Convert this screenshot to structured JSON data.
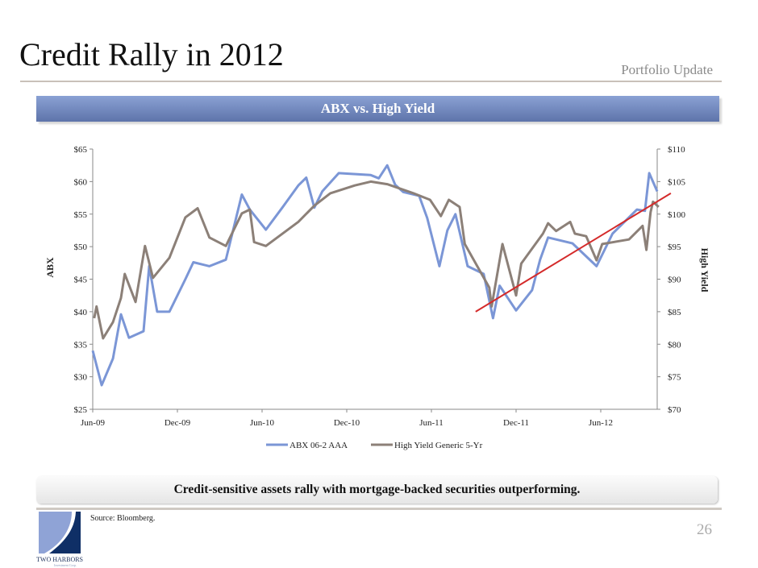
{
  "header": {
    "title": "Credit Rally in 2012",
    "section": "Portfolio Update"
  },
  "banner": {
    "label": "ABX vs. High Yield"
  },
  "callout": {
    "text": "Credit-sensitive assets rally with mortgage-backed securities outperforming."
  },
  "footer": {
    "source": "Source: Bloomberg.",
    "page_number": "26",
    "logo_text": "TWO HARBORS",
    "logo_subtext": "Investment Corp."
  },
  "chart_data": {
    "type": "line",
    "title": "",
    "xlabel": "",
    "ylabel": "ABX",
    "y2label": "High Yield",
    "xlim": [
      "2009-06-01",
      "2012-10-01"
    ],
    "ylim": [
      25,
      65
    ],
    "y2lim": [
      70,
      110
    ],
    "x_ticks": [
      {
        "date": "2009-06-01",
        "label": "Jun-09"
      },
      {
        "date": "2009-12-01",
        "label": "Dec-09"
      },
      {
        "date": "2010-06-01",
        "label": "Jun-10"
      },
      {
        "date": "2010-12-01",
        "label": "Dec-10"
      },
      {
        "date": "2011-06-01",
        "label": "Jun-11"
      },
      {
        "date": "2011-12-01",
        "label": "Dec-11"
      },
      {
        "date": "2012-06-01",
        "label": "Jun-12"
      }
    ],
    "y_ticks": [
      {
        "value": 25,
        "label": "$25"
      },
      {
        "value": 30,
        "label": "$30"
      },
      {
        "value": 35,
        "label": "$35"
      },
      {
        "value": 40,
        "label": "$40"
      },
      {
        "value": 45,
        "label": "$45"
      },
      {
        "value": 50,
        "label": "$50"
      },
      {
        "value": 55,
        "label": "$55"
      },
      {
        "value": 60,
        "label": "$60"
      },
      {
        "value": 65,
        "label": "$65"
      }
    ],
    "y2_ticks": [
      {
        "value": 70,
        "label": "$70"
      },
      {
        "value": 75,
        "label": "$75"
      },
      {
        "value": 80,
        "label": "$80"
      },
      {
        "value": 85,
        "label": "$85"
      },
      {
        "value": 90,
        "label": "$90"
      },
      {
        "value": 95,
        "label": "$95"
      },
      {
        "value": 100,
        "label": "$100"
      },
      {
        "value": 105,
        "label": "$105"
      },
      {
        "value": 110,
        "label": "$110"
      }
    ],
    "grid": false,
    "legend": "bottom",
    "series": [
      {
        "name": "ABX 06-2 AAA",
        "axis": "left",
        "color": "#7b96d6",
        "points": [
          [
            "2009-06-01",
            34.0
          ],
          [
            "2009-06-20",
            28.7
          ],
          [
            "2009-07-14",
            32.8
          ],
          [
            "2009-08-01",
            39.6
          ],
          [
            "2009-08-18",
            36.0
          ],
          [
            "2009-09-19",
            37.0
          ],
          [
            "2009-10-01",
            47.0
          ],
          [
            "2009-10-18",
            40.0
          ],
          [
            "2009-11-14",
            40.0
          ],
          [
            "2009-12-18",
            45.0
          ],
          [
            "2010-01-05",
            47.6
          ],
          [
            "2010-02-09",
            47.0
          ],
          [
            "2010-03-14",
            48.0
          ],
          [
            "2010-04-18",
            58.0
          ],
          [
            "2010-05-05",
            55.7
          ],
          [
            "2010-06-09",
            52.6
          ],
          [
            "2010-07-14",
            56.0
          ],
          [
            "2010-08-18",
            59.4
          ],
          [
            "2010-09-05",
            60.6
          ],
          [
            "2010-09-22",
            56.0
          ],
          [
            "2010-10-09",
            58.5
          ],
          [
            "2010-11-14",
            61.3
          ],
          [
            "2011-01-22",
            61.0
          ],
          [
            "2011-02-09",
            60.5
          ],
          [
            "2011-02-27",
            62.5
          ],
          [
            "2011-03-14",
            59.5
          ],
          [
            "2011-04-01",
            58.4
          ],
          [
            "2011-05-05",
            57.8
          ],
          [
            "2011-05-22",
            54.4
          ],
          [
            "2011-06-18",
            47.0
          ],
          [
            "2011-07-05",
            52.5
          ],
          [
            "2011-07-22",
            55.0
          ],
          [
            "2011-08-18",
            47.0
          ],
          [
            "2011-09-22",
            45.8
          ],
          [
            "2011-10-12",
            39.0
          ],
          [
            "2011-10-26",
            44.0
          ],
          [
            "2011-12-01",
            40.2
          ],
          [
            "2012-01-05",
            43.3
          ],
          [
            "2012-01-22",
            48.0
          ],
          [
            "2012-02-09",
            51.4
          ],
          [
            "2012-04-01",
            50.5
          ],
          [
            "2012-05-22",
            47.0
          ],
          [
            "2012-06-26",
            52.0
          ],
          [
            "2012-08-18",
            55.7
          ],
          [
            "2012-09-05",
            55.5
          ],
          [
            "2012-09-14",
            61.3
          ],
          [
            "2012-10-01",
            58.5
          ]
        ]
      },
      {
        "name": "High Yield Generic 5-Yr",
        "axis": "right",
        "color": "#8c8078",
        "points": [
          [
            "2009-06-04",
            84.0
          ],
          [
            "2009-06-09",
            85.8
          ],
          [
            "2009-06-23",
            80.9
          ],
          [
            "2009-07-14",
            83.4
          ],
          [
            "2009-08-01",
            87.1
          ],
          [
            "2009-08-09",
            90.8
          ],
          [
            "2009-09-02",
            86.5
          ],
          [
            "2009-09-22",
            95.1
          ],
          [
            "2009-10-09",
            90.2
          ],
          [
            "2009-11-14",
            93.3
          ],
          [
            "2009-12-18",
            99.5
          ],
          [
            "2010-01-14",
            100.9
          ],
          [
            "2010-02-09",
            96.4
          ],
          [
            "2010-03-14",
            95.1
          ],
          [
            "2010-04-18",
            100.1
          ],
          [
            "2010-05-05",
            100.7
          ],
          [
            "2010-05-14",
            95.7
          ],
          [
            "2010-06-09",
            95.1
          ],
          [
            "2010-08-18",
            98.8
          ],
          [
            "2010-09-22",
            101.3
          ],
          [
            "2010-10-26",
            103.2
          ],
          [
            "2010-12-18",
            104.4
          ],
          [
            "2011-01-22",
            105.0
          ],
          [
            "2011-02-27",
            104.6
          ],
          [
            "2011-04-23",
            103.2
          ],
          [
            "2011-05-28",
            102.2
          ],
          [
            "2011-06-21",
            99.7
          ],
          [
            "2011-07-08",
            102.2
          ],
          [
            "2011-08-01",
            101.1
          ],
          [
            "2011-08-12",
            95.4
          ],
          [
            "2011-10-04",
            88.7
          ],
          [
            "2011-10-09",
            85.8
          ],
          [
            "2011-11-02",
            95.4
          ],
          [
            "2011-12-01",
            87.5
          ],
          [
            "2011-12-12",
            92.4
          ],
          [
            "2012-01-28",
            97.0
          ],
          [
            "2012-02-09",
            98.6
          ],
          [
            "2012-02-26",
            97.4
          ],
          [
            "2012-03-26",
            98.8
          ],
          [
            "2012-04-06",
            97.0
          ],
          [
            "2012-04-30",
            96.6
          ],
          [
            "2012-05-22",
            92.9
          ],
          [
            "2012-06-04",
            95.4
          ],
          [
            "2012-08-01",
            96.1
          ],
          [
            "2012-08-30",
            98.2
          ],
          [
            "2012-09-08",
            94.5
          ],
          [
            "2012-09-17",
            100.3
          ],
          [
            "2012-09-22",
            101.9
          ],
          [
            "2012-10-04",
            101.1
          ]
        ]
      }
    ],
    "annotations": [
      {
        "type": "trend-line",
        "axis": "right",
        "color": "#d42a2a",
        "from": [
          "2011-09-05",
          85.0
        ],
        "to": [
          "2012-10-30",
          103.2
        ]
      }
    ]
  }
}
